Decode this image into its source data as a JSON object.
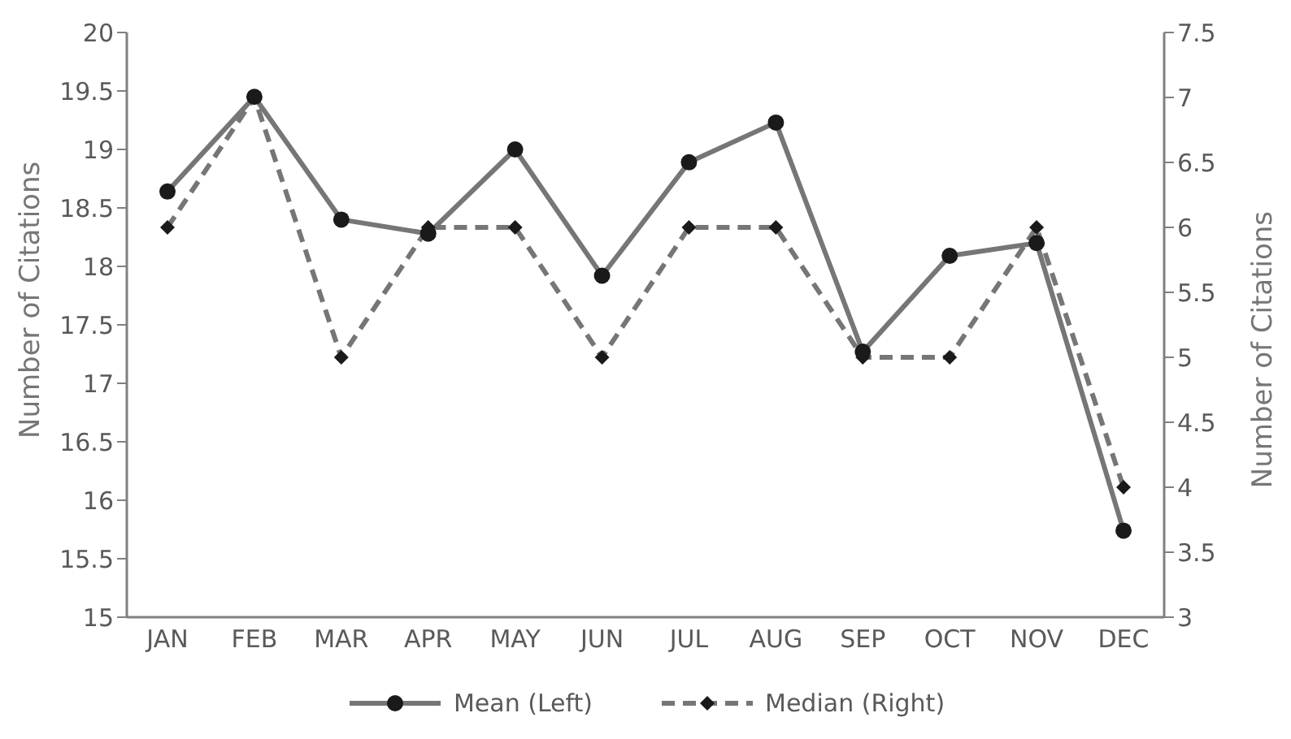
{
  "chart_data": {
    "type": "line",
    "categories": [
      "JAN",
      "FEB",
      "MAR",
      "APR",
      "MAY",
      "JUN",
      "JUL",
      "AUG",
      "SEP",
      "OCT",
      "NOV",
      "DEC"
    ],
    "series": [
      {
        "name": "Mean (Left)",
        "color": "#767676",
        "values": [
          18.64,
          19.45,
          18.4,
          18.28,
          19.0,
          17.92,
          18.89,
          19.23,
          17.27,
          18.09,
          18.2,
          15.74
        ],
        "marker": "circle",
        "line_style": "solid"
      },
      {
        "name": "Median (Right)",
        "color": "#767676",
        "axis": "y2",
        "values": [
          6,
          7,
          5,
          6,
          6,
          5,
          6,
          6,
          5,
          5,
          6,
          4
        ],
        "marker": "diamond",
        "line_style": "dashed"
      }
    ],
    "ylabel": "Number of Citations",
    "y2label": "Number of Citations",
    "ylim": [
      15,
      20
    ],
    "yticks": [
      15,
      15.5,
      16,
      16.5,
      17,
      17.5,
      18,
      18.5,
      19,
      19.5,
      20
    ],
    "y2lim": [
      3,
      7.5
    ],
    "y2ticks": [
      3,
      3.5,
      4,
      4.5,
      5,
      5.5,
      6,
      6.5,
      7,
      7.5
    ],
    "grid": false,
    "legend": "bottom"
  }
}
